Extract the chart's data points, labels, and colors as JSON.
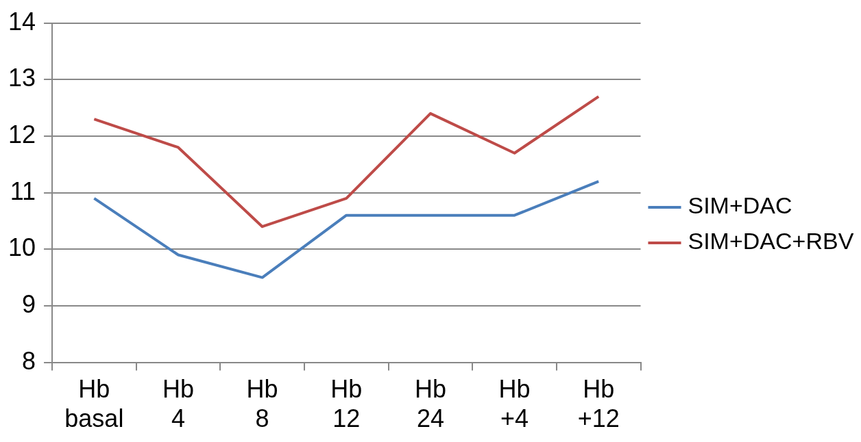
{
  "chart_data": {
    "type": "line",
    "categories": [
      "Hb basal",
      "Hb 4",
      "Hb 8",
      "Hb 12",
      "Hb 24",
      "Hb +4",
      "Hb +12"
    ],
    "series": [
      {
        "name": "SIM+DAC",
        "color": "#4a7ebb",
        "values": [
          10.9,
          9.9,
          9.5,
          10.6,
          10.6,
          10.6,
          11.2
        ]
      },
      {
        "name": "SIM+DAC+RBV",
        "color": "#be4b48",
        "values": [
          12.3,
          11.8,
          10.4,
          10.9,
          12.4,
          11.7,
          12.7
        ]
      }
    ],
    "ylim": [
      8,
      14
    ],
    "yticks": [
      8,
      9,
      10,
      11,
      12,
      13,
      14
    ],
    "grid": "y",
    "legend": "right",
    "marker": "none",
    "line_style": "solid"
  }
}
